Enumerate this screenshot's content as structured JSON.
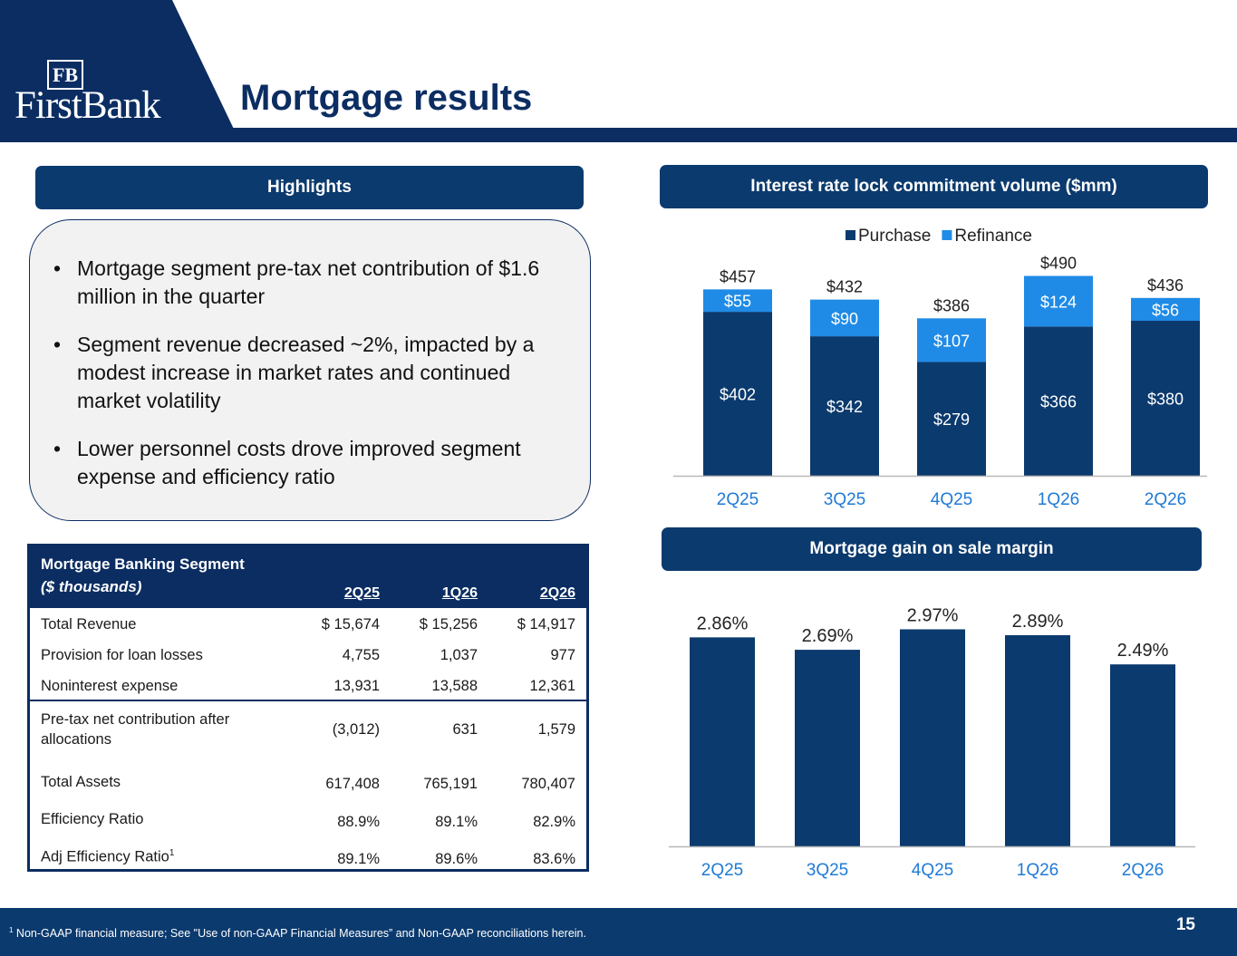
{
  "header": {
    "logo_monogram": "FB",
    "logo_wordmark": "FirstBank",
    "title": "Mortgage results"
  },
  "highlights": {
    "header": "Highlights",
    "bullets": [
      "Mortgage segment pre-tax net contribution of $1.6 million in the quarter",
      "Segment revenue decreased ~2%, impacted by a modest increase in market rates and continued market volatility",
      "Lower personnel costs drove improved segment expense and efficiency ratio"
    ]
  },
  "table": {
    "title": "Mortgage Banking Segment",
    "subtitle": "($ thousands)",
    "columns": [
      "2Q25",
      "1Q26",
      "2Q26"
    ],
    "rows": [
      {
        "label": "Total Revenue",
        "values": [
          "$ 15,674",
          "$  15,256",
          "$ 14,917"
        ]
      },
      {
        "label": "Provision for loan losses",
        "values": [
          "4,755",
          "1,037",
          "977"
        ]
      },
      {
        "label": "Noninterest expense",
        "values": [
          "13,931",
          "13,588",
          "12,361"
        ]
      },
      {
        "label": "Pre-tax net contribution after",
        "label2": "allocations",
        "values": [
          "(3,012)",
          "631",
          "1,579"
        ]
      },
      {
        "label": "Total Assets",
        "values": [
          "617,408",
          "765,191",
          "780,407"
        ]
      },
      {
        "label": "Efficiency Ratio",
        "values": [
          "88.9%",
          "89.1%",
          "82.9%"
        ]
      },
      {
        "label": "Adj Efficiency Ratio",
        "sup": "1",
        "values": [
          "89.1%",
          "89.6%",
          "83.6%"
        ]
      }
    ]
  },
  "chart_data": [
    {
      "type": "bar",
      "stacked": true,
      "title": "Interest rate lock commitment volume ($mm)",
      "categories": [
        "2Q25",
        "3Q25",
        "4Q25",
        "1Q26",
        "2Q26"
      ],
      "series": [
        {
          "name": "Purchase",
          "values": [
            402,
            342,
            279,
            366,
            380
          ],
          "labels": [
            "$402",
            "$342",
            "$279",
            "$366",
            "$380"
          ],
          "color": "#0b3a6e"
        },
        {
          "name": "Refinance",
          "values": [
            55,
            90,
            107,
            124,
            56
          ],
          "labels": [
            "$55",
            "$90",
            "$107",
            "$124",
            "$56"
          ],
          "color": "#1f8be6"
        }
      ],
      "totals": [
        457,
        432,
        386,
        490,
        436
      ],
      "total_labels": [
        "$457",
        "$432",
        "$386",
        "$490",
        "$436"
      ],
      "legend": "top-center",
      "ylim": [
        0,
        500
      ],
      "grid": false
    },
    {
      "type": "bar",
      "title": "Mortgage gain on sale margin",
      "categories": [
        "2Q25",
        "3Q25",
        "4Q25",
        "1Q26",
        "2Q26"
      ],
      "values": [
        2.86,
        2.69,
        2.97,
        2.89,
        2.49
      ],
      "labels": [
        "2.86%",
        "2.69%",
        "2.97%",
        "2.89%",
        "2.49%"
      ],
      "color": "#0b3a6e",
      "ylim": [
        0,
        3.1
      ],
      "grid": false
    }
  ],
  "footer": {
    "note_sup": "1",
    "note": " Non-GAAP financial measure; See \"Use of non-GAAP Financial Measures” and Non-GAAP reconciliations herein.",
    "page": "15"
  }
}
